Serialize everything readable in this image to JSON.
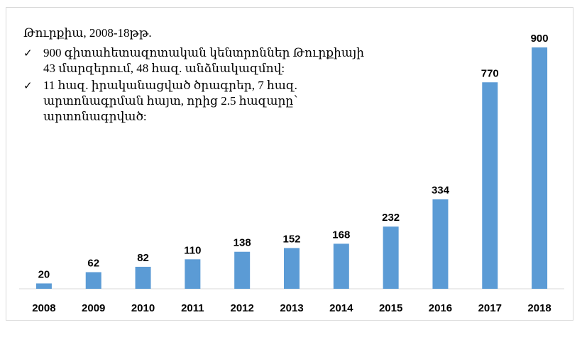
{
  "note": {
    "title": "Թուրքիա, 2008-18թթ.",
    "items": [
      "900 գիտահետազոտական կենտրոններ Թուրքիայի 43 մարզերում, 48 հազ. անձնակազմով:",
      "11 հազ. իրականացված ծրագրեր, 7 հազ. արտոնագրման հայտ, որից 2.5 հազարը՝ արտոնագրված:"
    ],
    "check_glyph": "✓"
  },
  "colors": {
    "bar": "#5b9bd5",
    "axis": "#d9d9d9",
    "text": "#000000"
  },
  "chart_data": {
    "type": "bar",
    "categories": [
      "2008",
      "2009",
      "2010",
      "2011",
      "2012",
      "2013",
      "2014",
      "2015",
      "2016",
      "2017",
      "2018"
    ],
    "values": [
      20,
      62,
      82,
      110,
      138,
      152,
      168,
      232,
      334,
      770,
      900
    ],
    "data_labels": [
      "20",
      "62",
      "82",
      "110",
      "138",
      "152",
      "168",
      "232",
      "334",
      "770",
      "900"
    ],
    "ylim": [
      0,
      900
    ],
    "grid": false,
    "legend": "none"
  }
}
